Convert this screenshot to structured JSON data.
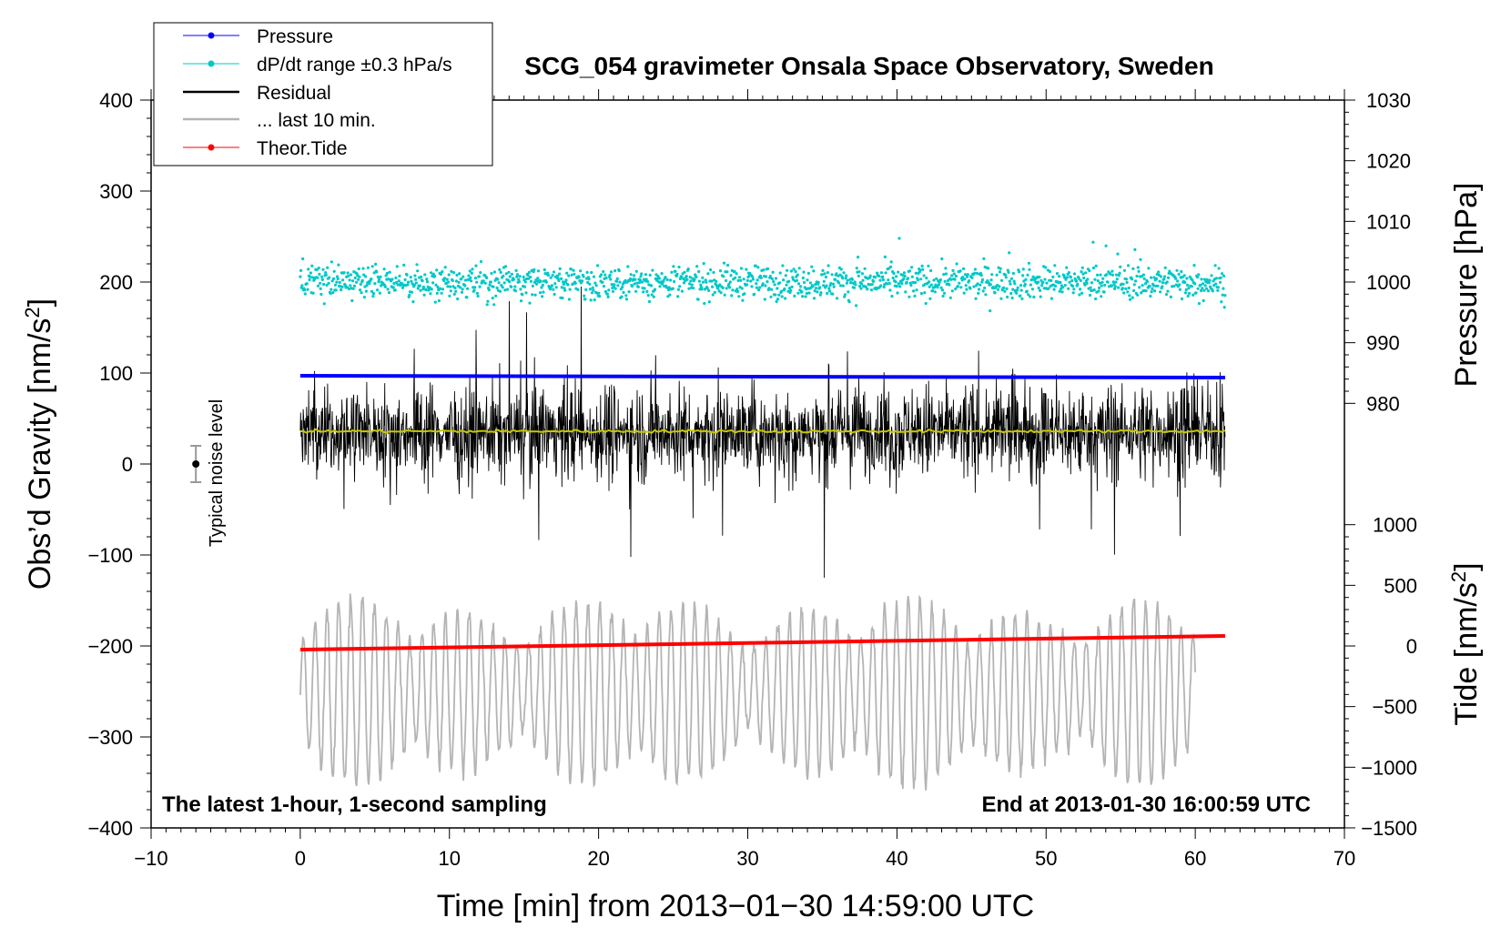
{
  "chart_data": {
    "type": "line",
    "title": "SCG_054 gravimeter Onsala Space Observatory, Sweden",
    "xlabel": "Time [min] from 2013−01−30 14:59:00 UTC",
    "ylabel_left": "Obs’d Gravity [nm/s",
    "ylabel_left_sup": "2",
    "ylabel_left_end": "]",
    "ylabel_right_top": "Pressure [hPa]",
    "ylabel_right_bottom": "Tide [nm/s",
    "ylabel_right_bottom_sup": "2",
    "ylabel_right_bottom_end": "]",
    "xlim": [
      -10,
      70
    ],
    "ylim_left": [
      -400,
      400
    ],
    "x_ticks": [
      -10,
      0,
      10,
      20,
      30,
      40,
      50,
      60,
      70
    ],
    "x_tick_labels": [
      "−10",
      "0",
      "10",
      "20",
      "30",
      "40",
      "50",
      "60",
      "70"
    ],
    "y_left_ticks": [
      400,
      300,
      200,
      100,
      0,
      -100,
      -200,
      -300,
      -400
    ],
    "y_left_tick_labels": [
      "400",
      "300",
      "200",
      "100",
      "0",
      "−100",
      "−200",
      "−300",
      "−400"
    ],
    "pressure_axis": {
      "ticks": [
        1030,
        1020,
        1010,
        1000,
        990,
        980
      ],
      "tick_labels": [
        "1030",
        "1020",
        "1010",
        "1000",
        "990",
        "980"
      ],
      "gravity_equivalent_top": 400,
      "gravity_per_hpa": 6.6667
    },
    "tide_axis": {
      "ticks": [
        1000,
        500,
        0,
        -500,
        -1000,
        -1500
      ],
      "tick_labels": [
        "1000",
        "500",
        "0",
        "−500",
        "−1000",
        "−1500"
      ],
      "gravity_at_zero": -200,
      "gravity_per_unit": 0.1333
    },
    "series": [
      {
        "name": "Pressure",
        "color": "#0000ff",
        "style": "line-dots",
        "x_range": [
          0,
          62
        ],
        "start": 97,
        "end": 95,
        "unit": "plotted on gravity scale"
      },
      {
        "name": "dP/dt range ±0.3 hPa/s",
        "color": "#00c8c8",
        "style": "scatter",
        "x_range": [
          0,
          62
        ],
        "center": 200,
        "spread": 20
      },
      {
        "name": "Residual",
        "color": "#000000",
        "style": "line",
        "x_range": [
          0,
          62
        ],
        "center": 35,
        "amplitude_range": [
          -125,
          195
        ]
      },
      {
        "name": "... last 10 min.",
        "color": "#b4b4b4",
        "style": "line",
        "x_range": [
          0,
          60
        ],
        "center": -250,
        "amplitude_range": [
          -360,
          -120
        ]
      },
      {
        "name": "Theor.Tide",
        "color": "#ff0000",
        "style": "line-dots",
        "x_range": [
          0,
          62
        ],
        "start": -204,
        "end": -189
      },
      {
        "name": "mean",
        "color": "#c8c800",
        "style": "line",
        "x_range": [
          0,
          62
        ],
        "value": 36
      }
    ],
    "noise_bar": {
      "label": "Typical noise level",
      "x": -7,
      "y": 0,
      "error": 20
    },
    "annotations": {
      "left": "The latest 1-hour, 1-second sampling",
      "right": "End at 2013-01-30 16:00:59 UTC"
    },
    "legend": {
      "position": "top-left",
      "entries": [
        "Pressure",
        "dP/dt range ±0.3 hPa/s",
        "Residual",
        "... last 10 min.",
        "Theor.Tide"
      ]
    },
    "colors": {
      "pressure": "#0000ff",
      "dpdt": "#00c8c8",
      "residual": "#000000",
      "last10": "#b4b4b4",
      "tide": "#ff0000",
      "mean": "#c8c800"
    }
  }
}
